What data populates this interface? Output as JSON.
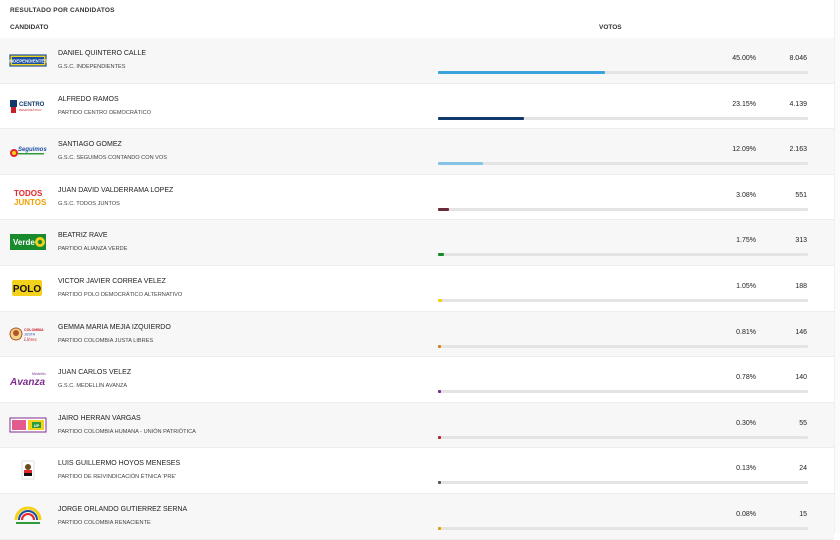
{
  "header": {
    "section_title": "RESULTADO POR CANDIDATOS",
    "col_candidate": "CANDIDATO",
    "col_votes": "VOTOS"
  },
  "candidates": [
    {
      "name": "DANIEL QUINTERO CALLE",
      "party": "G.S.C. INDEPENDIENTES",
      "percent": "45.00%",
      "votes": "8.046",
      "share": 0.45,
      "color": "#3aa3dc",
      "logo": "independientes-logo",
      "logo_text": "INDEPENDIENTES"
    },
    {
      "name": "ALFREDO RAMOS",
      "party": "PARTIDO CENTRO DEMOCRÁTICO",
      "percent": "23.15%",
      "votes": "4.139",
      "share": 0.2315,
      "color": "#0f3a6b",
      "logo": "centro-democratico-logo",
      "logo_text": "CENTRO"
    },
    {
      "name": "SANTIAGO GOMEZ",
      "party": "G.S.C. SEGUIMOS CONTANDO CON VOS",
      "percent": "12.09%",
      "votes": "2.163",
      "share": 0.1209,
      "color": "#86c3e6",
      "logo": "seguimos-logo",
      "logo_text": "Seguimos"
    },
    {
      "name": "JUAN DAVID VALDERRAMA LOPEZ",
      "party": "G.S.C. TODOS JUNTOS",
      "percent": "3.08%",
      "votes": "551",
      "share": 0.0308,
      "color": "#6b2b3a",
      "logo": "todos-juntos-logo",
      "logo_text": "TODOS JUNTOS"
    },
    {
      "name": "BEATRIZ RAVE",
      "party": "PARTIDO ALIANZA VERDE",
      "percent": "1.75%",
      "votes": "313",
      "share": 0.0175,
      "color": "#1a8a2e",
      "logo": "alianza-verde-logo",
      "logo_text": "Verde"
    },
    {
      "name": "VICTOR JAVIER CORREA VELEZ",
      "party": "PARTIDO POLO DEMOCRÁTICO ALTERNATIVO",
      "percent": "1.05%",
      "votes": "188",
      "share": 0.0105,
      "color": "#f2d200",
      "logo": "polo-logo",
      "logo_text": "POLO"
    },
    {
      "name": "GEMMA MARIA MEJIA IZQUIERDO",
      "party": "PARTIDO COLOMBIA JUSTA LIBRES",
      "percent": "0.81%",
      "votes": "146",
      "share": 0.0081,
      "color": "#e07b1c",
      "logo": "justa-libres-logo",
      "logo_text": "Libres"
    },
    {
      "name": "JUAN CARLOS VELEZ",
      "party": "G.S.C. MEDELLÍN AVANZA",
      "percent": "0.78%",
      "votes": "140",
      "share": 0.0078,
      "color": "#7b2d8e",
      "logo": "medellin-avanza-logo",
      "logo_text": "Avanza"
    },
    {
      "name": "JAIRO HERRAN VARGAS",
      "party": "PARTIDO COLOMBIA HUMANA - UNIÓN PATRIÓTICA",
      "percent": "0.30%",
      "votes": "55",
      "share": 0.003,
      "color": "#b3222a",
      "logo": "colombia-humana-logo",
      "logo_text": "UP"
    },
    {
      "name": "LUIS GUILLERMO HOYOS MENESES",
      "party": "PARTIDO DE REIVINDICACIÓN ÉTNICA 'PRE'",
      "percent": "0.13%",
      "votes": "24",
      "share": 0.0013,
      "color": "#555555",
      "logo": "pre-logo",
      "logo_text": ""
    },
    {
      "name": "JORGE ORLANDO GUTIERREZ SERNA",
      "party": "PARTIDO COLOMBIA RENACIENTE",
      "percent": "0.08%",
      "votes": "15",
      "share": 0.0008,
      "color": "#e0a100",
      "logo": "colombia-renaciente-logo",
      "logo_text": ""
    }
  ]
}
